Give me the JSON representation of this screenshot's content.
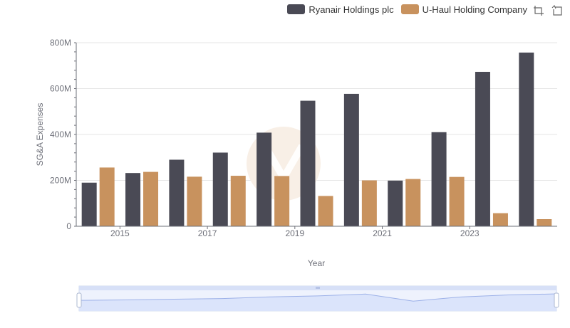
{
  "colors": {
    "ryanair": "#4a4a55",
    "uhaul": "#c8925e",
    "grid": "#e6e6e6",
    "zoom_fill": "#dbe4fb",
    "zoom_line": "#9db1e8"
  },
  "legend": {
    "series1": "Ryanair Holdings plc",
    "series2": "U-Haul Holding Company"
  },
  "toolbox": {
    "zoom_icon": "zoom-select-icon",
    "reset_icon": "zoom-reset-icon"
  },
  "chart_data": {
    "type": "bar",
    "title": "",
    "xlabel": "Year",
    "ylabel": "SG&A Expenses",
    "categories": [
      "2014",
      "2015",
      "2016",
      "2017",
      "2018",
      "2019",
      "2020",
      "2021",
      "2022",
      "2023",
      "2024"
    ],
    "x_tick_labels": [
      "2015",
      "2017",
      "2019",
      "2021",
      "2023"
    ],
    "ylim": [
      0,
      800000000
    ],
    "y_ticks": [
      {
        "value": 0,
        "label": "0"
      },
      {
        "value": 200000000,
        "label": "200M"
      },
      {
        "value": 400000000,
        "label": "400M"
      },
      {
        "value": 600000000,
        "label": "600M"
      },
      {
        "value": 800000000,
        "label": "800M"
      }
    ],
    "series": [
      {
        "name": "Ryanair Holdings plc",
        "values": [
          190000000,
          232000000,
          290000000,
          321000000,
          408000000,
          547000000,
          577000000,
          199000000,
          410000000,
          673000000,
          757000000
        ]
      },
      {
        "name": "U-Haul Holding Company",
        "values": [
          256000000,
          237000000,
          216000000,
          220000000,
          219000000,
          132000000,
          200000000,
          206000000,
          215000000,
          57000000,
          31000000
        ]
      }
    ]
  }
}
